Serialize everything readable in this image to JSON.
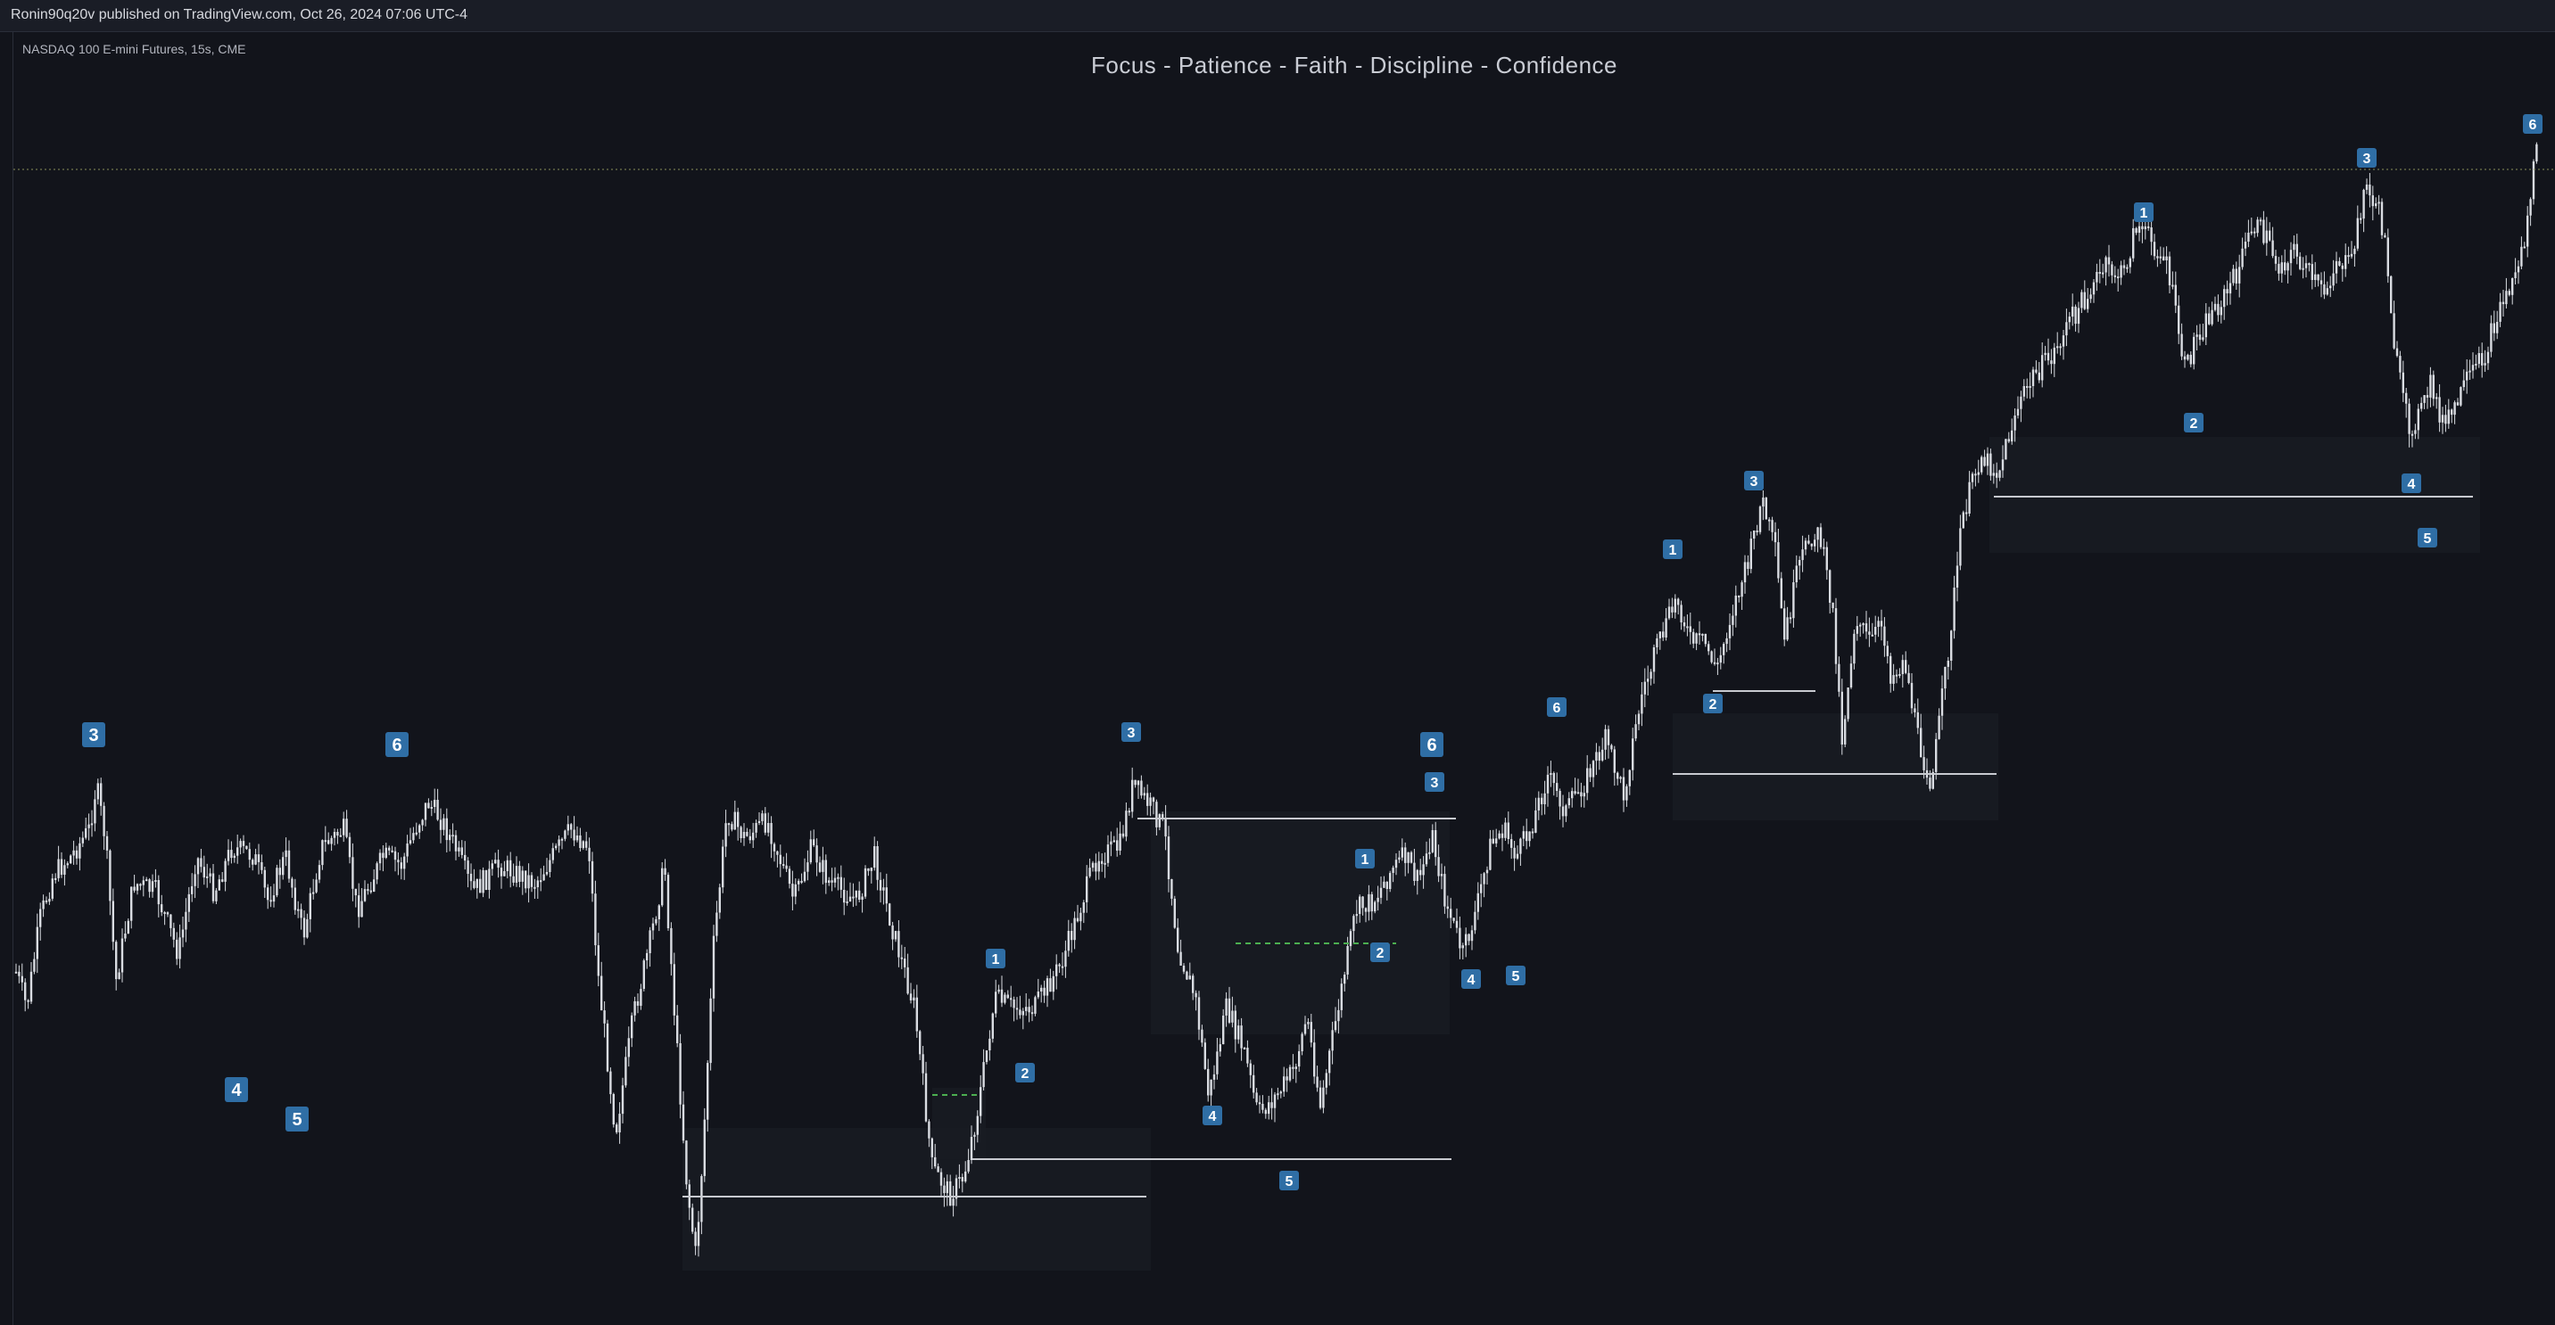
{
  "header": {
    "publisher": "Ronin90q20v published on TradingView.com, Oct 26, 2024 07:06 UTC-4"
  },
  "chart_data": {
    "type": "candlestick",
    "symbol_label": "NASDAQ 100 E-mini Futures, 15s, CME",
    "title": "Focus - Patience - Faith - Discipline - Confidence",
    "xlabel": "",
    "ylabel": "",
    "grid": false,
    "colors": {
      "background": "#12141b",
      "candle": "#d9dce2",
      "marker": "#2f6ea5",
      "marker_text": "#ffffff",
      "level_line": "#c8cad0",
      "dashed_line": "#4caf50"
    },
    "wave_labels": [
      "3",
      "4",
      "5",
      "6",
      "3",
      "1",
      "2",
      "4",
      "5",
      "1",
      "2",
      "6",
      "3",
      "4",
      "5",
      "6",
      "1",
      "2",
      "3",
      "1",
      "2",
      "3",
      "4",
      "5",
      "6"
    ]
  }
}
